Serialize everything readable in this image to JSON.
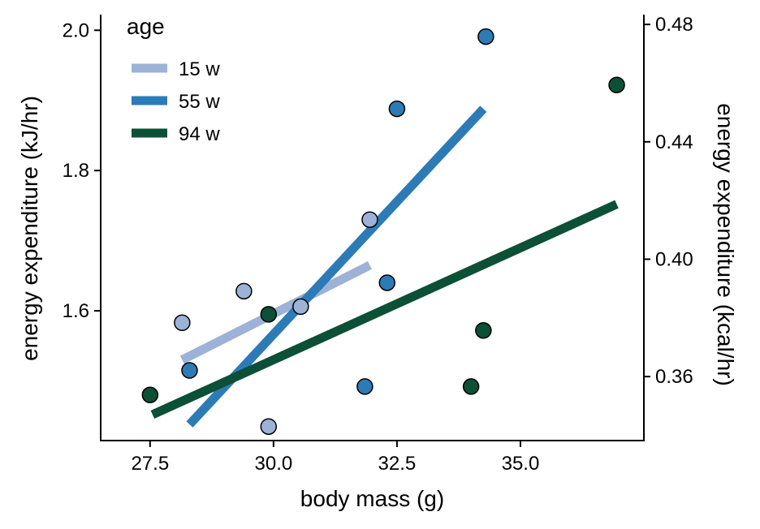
{
  "chart_data": {
    "type": "scatter",
    "xlabel": "body mass (g)",
    "ylabel": "energy expenditure (kJ/hr)",
    "ylabel_right": "energy expenditure (kcal/hr)",
    "xlim": [
      26.5,
      37.5
    ],
    "ylim": [
      1.415,
      2.02
    ],
    "ylim_right": [
      0.3382,
      0.4828
    ],
    "x_ticks": [
      {
        "value": 27.5,
        "label": "27.5"
      },
      {
        "value": 30.0,
        "label": "30.0"
      },
      {
        "value": 32.5,
        "label": "32.5"
      },
      {
        "value": 35.0,
        "label": "35.0"
      }
    ],
    "y_ticks": [
      {
        "value": 1.6,
        "label": "1.6"
      },
      {
        "value": 1.8,
        "label": "1.8"
      },
      {
        "value": 2.0,
        "label": "2.0"
      }
    ],
    "y_ticks_right": [
      {
        "value": 0.36,
        "label": "0.36"
      },
      {
        "value": 0.4,
        "label": "0.40"
      },
      {
        "value": 0.44,
        "label": "0.44"
      },
      {
        "value": 0.48,
        "label": "0.48"
      }
    ],
    "grid": false,
    "legend": {
      "title": "age",
      "position": "top-left"
    },
    "series": [
      {
        "name": "15 w",
        "color": "#9cb2d6",
        "points": [
          {
            "x": 28.15,
            "y": 1.583
          },
          {
            "x": 29.4,
            "y": 1.628
          },
          {
            "x": 30.55,
            "y": 1.606
          },
          {
            "x": 31.95,
            "y": 1.73
          },
          {
            "x": 29.9,
            "y": 1.435
          }
        ],
        "fit": [
          {
            "x": 28.15,
            "y": 1.53
          },
          {
            "x": 31.95,
            "y": 1.665
          }
        ]
      },
      {
        "name": "55 w",
        "color": "#2c7bb6",
        "points": [
          {
            "x": 28.3,
            "y": 1.515
          },
          {
            "x": 31.85,
            "y": 1.492
          },
          {
            "x": 32.3,
            "y": 1.64
          },
          {
            "x": 32.5,
            "y": 1.888
          },
          {
            "x": 34.3,
            "y": 1.991
          }
        ],
        "fit": [
          {
            "x": 28.3,
            "y": 1.438
          },
          {
            "x": 34.25,
            "y": 1.888
          }
        ]
      },
      {
        "name": "94 w",
        "color": "#0b5037",
        "points": [
          {
            "x": 27.5,
            "y": 1.48
          },
          {
            "x": 29.9,
            "y": 1.595
          },
          {
            "x": 34.0,
            "y": 1.492
          },
          {
            "x": 34.25,
            "y": 1.572
          },
          {
            "x": 36.95,
            "y": 1.922
          }
        ],
        "fit": [
          {
            "x": 27.55,
            "y": 1.452
          },
          {
            "x": 36.95,
            "y": 1.752
          }
        ]
      }
    ]
  }
}
